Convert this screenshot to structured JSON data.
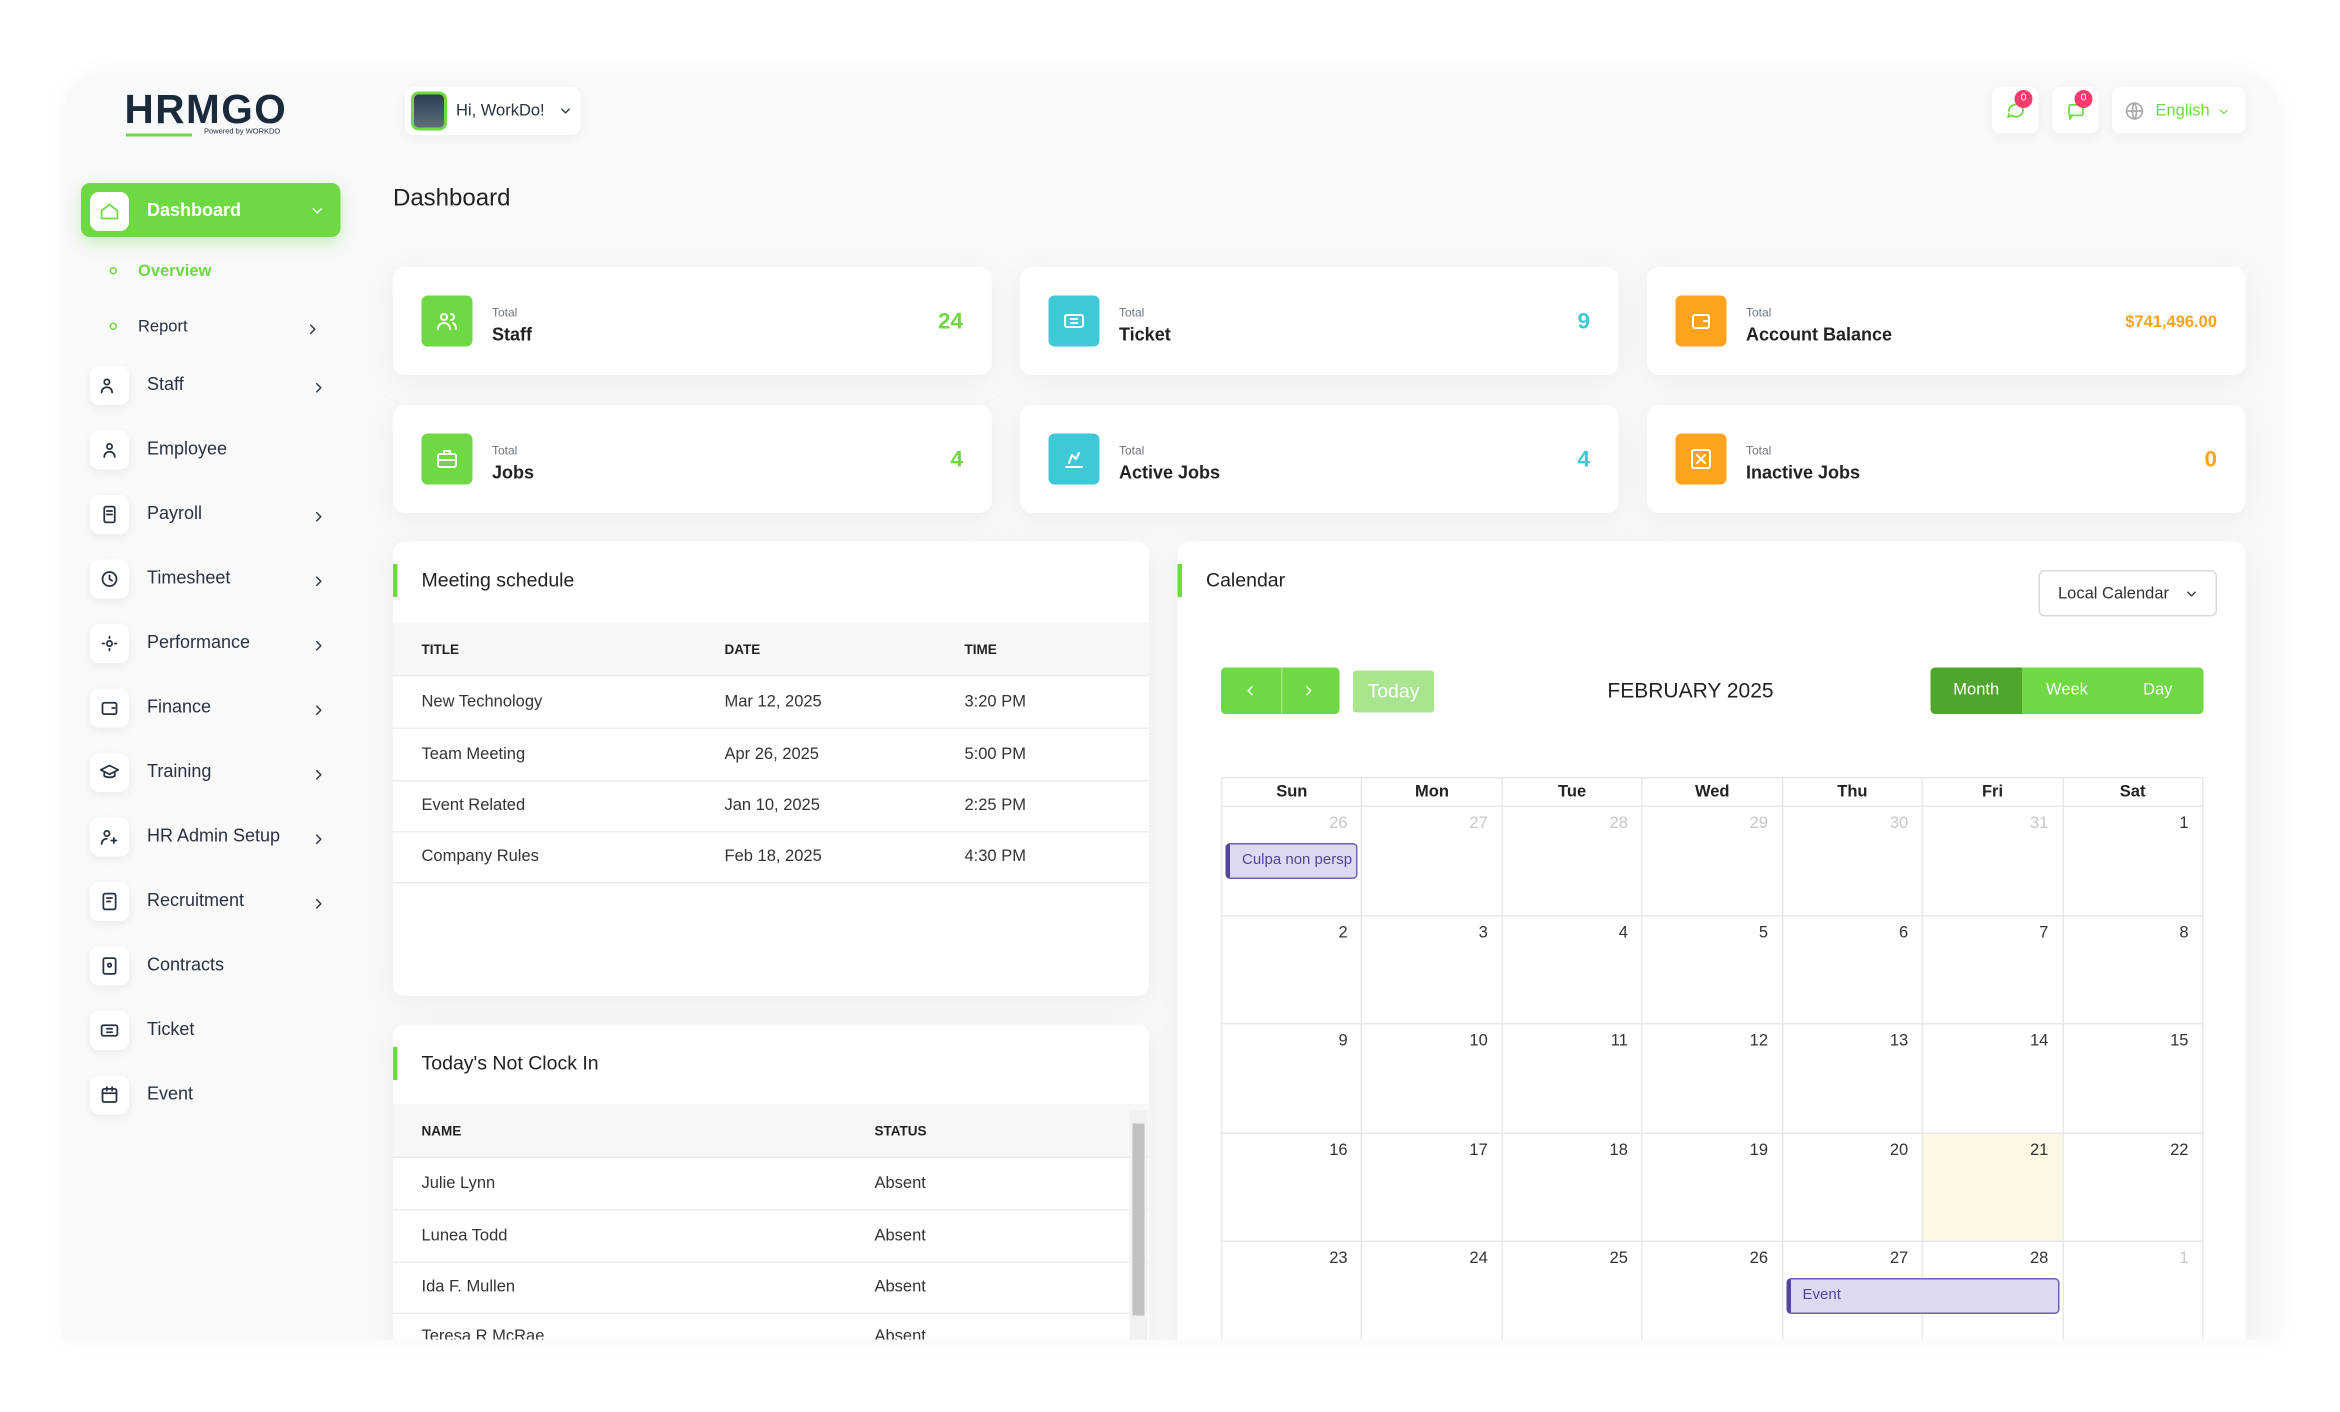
{
  "brand": {
    "logo": "HRMGO",
    "tagline": "Powered by WORKDO"
  },
  "header": {
    "greeting": "Hi, WorkDo!",
    "notifications": [
      0,
      0
    ],
    "language": "English"
  },
  "sidebar": {
    "items": [
      {
        "label": "Dashboard",
        "active": true,
        "expandable": true,
        "children": [
          {
            "label": "Overview",
            "active": true,
            "expandable": false
          },
          {
            "label": "Report",
            "active": false,
            "expandable": true
          }
        ]
      },
      {
        "label": "Staff",
        "expandable": true
      },
      {
        "label": "Employee",
        "expandable": false
      },
      {
        "label": "Payroll",
        "expandable": true
      },
      {
        "label": "Timesheet",
        "expandable": true
      },
      {
        "label": "Performance",
        "expandable": true
      },
      {
        "label": "Finance",
        "expandable": true
      },
      {
        "label": "Training",
        "expandable": true
      },
      {
        "label": "HR Admin Setup",
        "expandable": true
      },
      {
        "label": "Recruitment",
        "expandable": true
      },
      {
        "label": "Contracts",
        "expandable": false
      },
      {
        "label": "Ticket",
        "expandable": false
      },
      {
        "label": "Event",
        "expandable": false
      }
    ]
  },
  "page_title": "Dashboard",
  "stats": [
    {
      "caption": "Total",
      "label": "Staff",
      "value": 24,
      "color": "#6fd943"
    },
    {
      "caption": "Total",
      "label": "Ticket",
      "value": 9,
      "color": "#3ec9d6"
    },
    {
      "caption": "Total",
      "label": "Account Balance",
      "value": "$741,496.00",
      "color": "#ffa21d"
    },
    {
      "caption": "Total",
      "label": "Jobs",
      "value": 4,
      "color": "#6fd943"
    },
    {
      "caption": "Total",
      "label": "Active Jobs",
      "value": 4,
      "color": "#3ec9d6"
    },
    {
      "caption": "Total",
      "label": "Inactive Jobs",
      "value": 0,
      "color": "#ffa21d"
    }
  ],
  "meeting_schedule": {
    "title": "Meeting schedule",
    "columns": [
      "TITLE",
      "DATE",
      "TIME"
    ],
    "rows": [
      [
        "New Technology",
        "Mar 12, 2025",
        "3:20 PM"
      ],
      [
        "Team Meeting",
        "Apr 26, 2025",
        "5:00 PM"
      ],
      [
        "Event Related",
        "Jan 10, 2025",
        "2:25 PM"
      ],
      [
        "Company Rules",
        "Feb 18, 2025",
        "4:30 PM"
      ]
    ]
  },
  "not_clock_in": {
    "title": "Today's Not Clock In",
    "columns": [
      "NAME",
      "STATUS"
    ],
    "rows": [
      [
        "Julie Lynn",
        "Absent"
      ],
      [
        "Lunea Todd",
        "Absent"
      ],
      [
        "Ida F. Mullen",
        "Absent"
      ],
      [
        "Teresa R McRae",
        "Absent"
      ]
    ]
  },
  "calendar": {
    "title": "Calendar",
    "source": "Local Calendar",
    "today_button": "Today",
    "month_title": "FEBRUARY 2025",
    "views": [
      "Month",
      "Week",
      "Day"
    ],
    "active_view": "Month",
    "weekdays": [
      "Sun",
      "Mon",
      "Tue",
      "Wed",
      "Thu",
      "Fri",
      "Sat"
    ],
    "weeks": [
      [
        26,
        27,
        28,
        29,
        30,
        31,
        1
      ],
      [
        2,
        3,
        4,
        5,
        6,
        7,
        8
      ],
      [
        9,
        10,
        11,
        12,
        13,
        14,
        15
      ],
      [
        16,
        17,
        18,
        19,
        20,
        21,
        22
      ],
      [
        23,
        24,
        25,
        26,
        27,
        28,
        1
      ]
    ],
    "today": 21,
    "events": [
      {
        "title": "Culpa non persp",
        "week": 0,
        "days": [
          26,
          26
        ]
      },
      {
        "title": "Event",
        "week": 4,
        "days": [
          27,
          28
        ]
      }
    ]
  }
}
